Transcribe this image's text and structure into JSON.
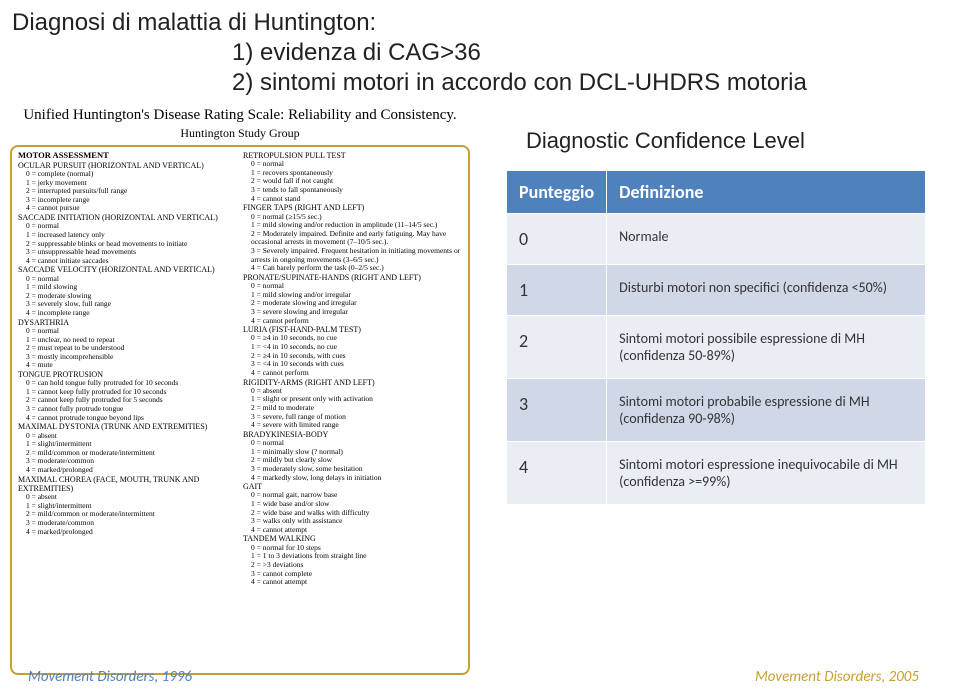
{
  "title": {
    "line1": "Diagnosi di malattia di Huntington:",
    "line2": "1) evidenza di CAG>36",
    "line3": "2) sintomi motori in accordo con DCL-UHDRS motoria"
  },
  "uhdrs": {
    "header": "Unified Huntington's Disease Rating Scale: Reliability and Consistency.",
    "subheader": "Huntington Study Group"
  },
  "assessment": {
    "title": "MOTOR ASSESSMENT",
    "left": [
      {
        "h": "OCULAR PURSUIT (horizontal and vertical)",
        "s": [
          "0 = complete (normal)",
          "1 = jerky movement",
          "2 = interrupted pursuits/full range",
          "3 = incomplete range",
          "4 = cannot pursue"
        ]
      },
      {
        "h": "SACCADE INITIATION (horizontal and vertical)",
        "s": [
          "0 = normal",
          "1 = increased latency only",
          "2 = suppressable blinks or head movements to initiate",
          "3 = unsuppressable head movements",
          "4 = cannot initiate saccades"
        ]
      },
      {
        "h": "SACCADE VELOCITY (horizontal and vertical)",
        "s": [
          "0 = normal",
          "1 = mild slowing",
          "2 = moderate slowing",
          "3 = severely slow, full range",
          "4 = incomplete range"
        ]
      },
      {
        "h": "DYSARTHRIA",
        "s": [
          "0 = normal",
          "1 = unclear, no need to repeat",
          "2 = must repeat to be understood",
          "3 = mostly incomprehensible",
          "4 = mute"
        ]
      },
      {
        "h": "TONGUE PROTRUSION",
        "s": [
          "0 = can hold tongue fully protruded for 10 seconds",
          "1 = cannot keep fully protruded for 10 seconds",
          "2 = cannot keep fully protruded for 5 seconds",
          "3 = cannot fully protrude tongue",
          "4 = cannot protrude tongue beyond lips"
        ]
      },
      {
        "h": "MAXIMAL DYSTONIA (trunk and extremities)",
        "s": [
          "0 = absent",
          "1 = slight/intermittent",
          "2 = mild/common or moderate/intermittent",
          "3 = moderate/common",
          "4 = marked/prolonged"
        ]
      },
      {
        "h": "MAXIMAL CHOREA (face, mouth, trunk and extremities)",
        "s": [
          "0 = absent",
          "1 = slight/intermittent",
          "2 = mild/common or moderate/intermittent",
          "3 = moderate/common",
          "4 = marked/prolonged"
        ]
      }
    ],
    "right": [
      {
        "h": "RETROPULSION PULL TEST",
        "s": [
          "0 = normal",
          "1 = recovers spontaneously",
          "2 = would fall if not caught",
          "3 = tends to fall spontaneously",
          "4 = cannot stand"
        ]
      },
      {
        "h": "FINGER TAPS (right and left)",
        "s": [
          "0 = normal (≥15/5 sec.)",
          "1 = mild slowing and/or reduction in amplitude (11–14/5 sec.)",
          "2 = Moderately impaired. Definite and early fatiguing. May have occasional arrests in movement (7–10/5 sec.).",
          "3 = Severely impaired. Frequent hesitation in initiating movements or arrests in ongoing movements (3–6/5 sec.)",
          "4 = Can barely perform the task (0–2/5 sec.)"
        ]
      },
      {
        "h": "PRONATE/SUPINATE-HANDS (right and left)",
        "s": [
          "0 = normal",
          "1 = mild slowing and/or irregular",
          "2 = moderate slowing and irregular",
          "3 = severe slowing and irregular",
          "4 = cannot perform"
        ]
      },
      {
        "h": "LURIA (fist-hand-palm test)",
        "s": [
          "0 = ≥4 in 10 seconds, no cue",
          "1 = <4 in 10 seconds, no cue",
          "2 = ≥4 in 10 seconds, with cues",
          "3 = <4 in 10 seconds with cues",
          "4 = cannot perform"
        ]
      },
      {
        "h": "RIGIDITY-ARMS (right and left)",
        "s": [
          "0 = absent",
          "1 = slight or present only with activation",
          "2 = mild to moderate",
          "3 = severe, full range of motion",
          "4 = severe with limited range"
        ]
      },
      {
        "h": "BRADYKINESIA-BODY",
        "s": [
          "0 = normal",
          "1 = minimally slow (? normal)",
          "2 = mildly but clearly slow",
          "3 = moderately slow, some hesitation",
          "4 = markedly slow, long delays in initiation"
        ]
      },
      {
        "h": "GAIT",
        "s": [
          "0 = normal gait, narrow base",
          "1 = wide base and/or slow",
          "2 = wide base and walks with difficulty",
          "3 = walks only with assistance",
          "4 = cannot attempt"
        ]
      },
      {
        "h": "TANDEM WALKING",
        "s": [
          "0 = normal for 10 steps",
          "1 = 1 to 3 deviations from straight line",
          "2 = >3 deviations",
          "3 = cannot complete",
          "4 = cannot attempt"
        ]
      }
    ]
  },
  "dcl": {
    "title": "Diagnostic Confidence Level",
    "headers": {
      "score": "Punteggio",
      "def": "Definizione"
    },
    "rows": [
      {
        "score": "0",
        "def": "Normale"
      },
      {
        "score": "1",
        "def": "Disturbi motori non specifici (confidenza <50%)"
      },
      {
        "score": "2",
        "def": "Sintomi motori possibile espressione di MH (confidenza 50-89%)"
      },
      {
        "score": "3",
        "def": "Sintomi motori probabile espressione di MH (confidenza 90-98%)"
      },
      {
        "score": "4",
        "def": "Sintomi motori espressione inequivocabile di MH (confidenza >=99%)"
      }
    ]
  },
  "footer": {
    "left": "Movement Disorders, 1996",
    "right": "Movement Disorders, 2005"
  },
  "colors": {
    "table_header_bg": "#4f81bd",
    "table_row_bg": "#e9edf4",
    "table_row_alt_bg": "#d0d8e8",
    "box_border": "#c8a030",
    "footer_left": "#4f81bd",
    "footer_right": "#c8a030"
  }
}
